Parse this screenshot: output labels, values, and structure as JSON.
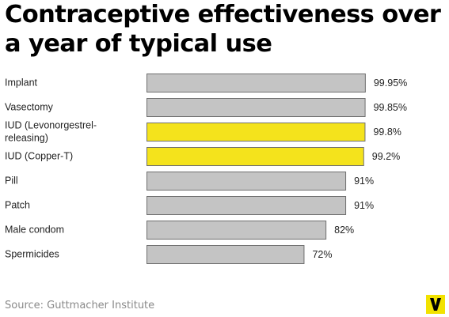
{
  "title": "Contraceptive effectiveness over a year of typical use",
  "source": "Source: Guttmacher Institute",
  "logo": {
    "text": "V",
    "icon": "vox-logo-icon"
  },
  "colors": {
    "bar_default": "#c4c4c4",
    "bar_highlight": "#f4e31c",
    "bar_stroke": "#6f6f6f",
    "logo_bg": "#f2e200"
  },
  "chart_data": {
    "type": "bar",
    "orientation": "horizontal",
    "categories": [
      [
        "Implant"
      ],
      [
        "Vasectomy"
      ],
      [
        "IUD (Levonorgestrel-",
        "releasing)"
      ],
      [
        "IUD (Copper-T)"
      ],
      [
        "Pill"
      ],
      [
        "Patch"
      ],
      [
        "Male condom"
      ],
      [
        "Spermicides"
      ]
    ],
    "values": [
      99.95,
      99.85,
      99.8,
      99.2,
      91,
      91,
      82,
      72
    ],
    "value_labels": [
      "99.95%",
      "99.85%",
      "99.8%",
      "99.2%",
      "91%",
      "91%",
      "82%",
      "72%"
    ],
    "highlighted": [
      false,
      false,
      true,
      true,
      false,
      false,
      false,
      false
    ],
    "xlim": [
      0,
      100
    ],
    "grid": false,
    "legend": "none"
  }
}
